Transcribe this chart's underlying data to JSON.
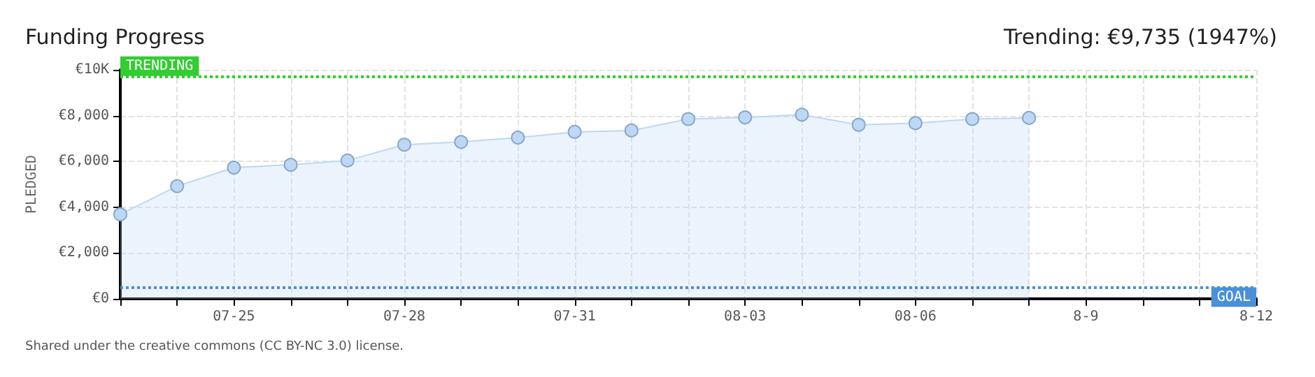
{
  "chart_data": {
    "type": "area",
    "title": "Funding Progress",
    "subtitle": "Trending: €9,735 (1947%)",
    "ylabel": "PLEDGED",
    "categories": [
      null,
      null,
      "07-25",
      null,
      null,
      "07-28",
      null,
      null,
      "07-31",
      null,
      null,
      "08-03",
      null,
      null,
      "08-06",
      null,
      null,
      "8-9",
      null,
      null,
      "8-12"
    ],
    "series": [
      {
        "color": "#bcd8f5",
        "values": [
          3690,
          4920,
          5730,
          5850,
          6040,
          6730,
          6850,
          7040,
          7290,
          7350,
          7850,
          7920,
          8040,
          7600,
          7670,
          7850,
          7900,
          null,
          null,
          null,
          null
        ]
      }
    ],
    "ylim": [
      0,
      10000
    ],
    "yticks": [
      {
        "value": 0,
        "label": "€0"
      },
      {
        "value": 2000,
        "label": "€2,000"
      },
      {
        "value": 4000,
        "label": "€4,000"
      },
      {
        "value": 6000,
        "label": "€6,000"
      },
      {
        "value": 8000,
        "label": "€8,000"
      },
      {
        "value": 10000,
        "label": "€10K"
      }
    ],
    "ref_lines": [
      {
        "axis": "y",
        "value": 9735,
        "label": "TRENDING",
        "color": "#33cc33",
        "line_style": "dotted"
      },
      {
        "axis": "y",
        "value": 500,
        "label": "GOAL",
        "color": "#4a90d9",
        "line_style": "dotted"
      }
    ],
    "grid": true,
    "marker": "circle",
    "line_style": "solid",
    "annotations": [
      "Shared under the creative commons (CC BY-NC 3.0) license."
    ]
  }
}
